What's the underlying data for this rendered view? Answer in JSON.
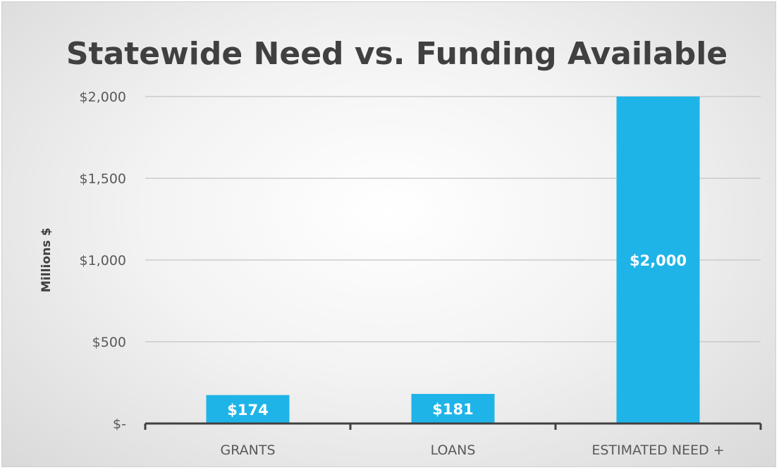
{
  "chart_data": {
    "type": "bar",
    "title": "Statewide Need vs. Funding Available",
    "ylabel": "Millions $",
    "xlabel": "",
    "categories": [
      "GRANTS",
      "LOANS",
      "ESTIMATED NEED +"
    ],
    "values": [
      174,
      181,
      2000
    ],
    "data_labels": [
      "$174",
      "$181",
      "$2,000"
    ],
    "ylim": [
      0,
      2000
    ],
    "yticks": [
      0,
      500,
      1000,
      1500,
      2000
    ],
    "ytick_labels": [
      "$-",
      "$500",
      "$1,000",
      "$1,500",
      "$2,000"
    ],
    "grid": true,
    "legend": "none",
    "bar_color": "#1fb4e8"
  }
}
